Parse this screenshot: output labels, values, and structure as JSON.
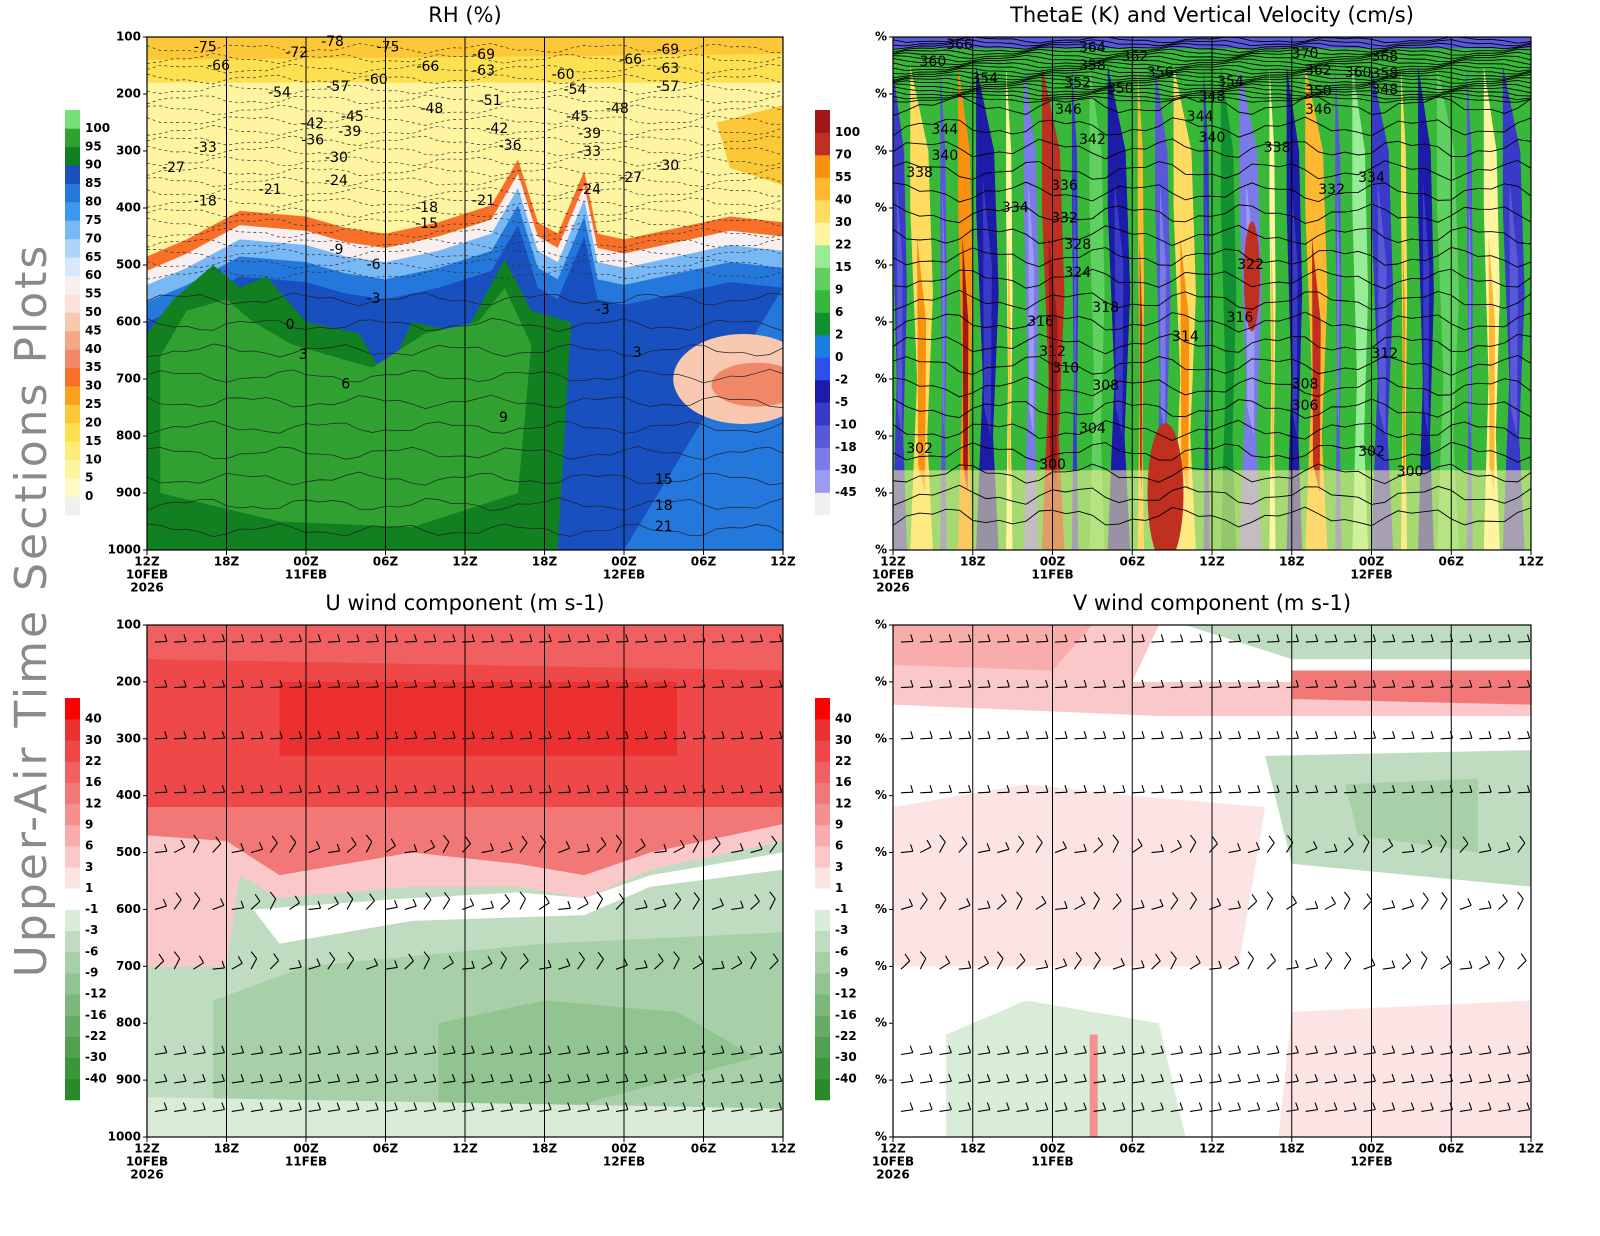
{
  "side_title": "Upper-Air Time Sections Plots",
  "chart_data": [
    {
      "type": "contour",
      "title": "RH (%)",
      "field": "rh",
      "xlim": [
        0,
        48
      ],
      "ylim": [
        1000,
        100
      ],
      "xticks": [
        {
          "value": 0,
          "label": "12Z"
        },
        {
          "value": 6,
          "label": "18Z"
        },
        {
          "value": 12,
          "label": "00Z"
        },
        {
          "value": 18,
          "label": "06Z"
        },
        {
          "value": 24,
          "label": "12Z"
        },
        {
          "value": 30,
          "label": "18Z"
        },
        {
          "value": 36,
          "label": "00Z"
        },
        {
          "value": 42,
          "label": "06Z"
        },
        {
          "value": 48,
          "label": "12Z"
        }
      ],
      "x_date_labels": [
        {
          "value": 0,
          "label": "10FEB"
        },
        {
          "value": 12,
          "label": "11FEB"
        },
        {
          "value": 36,
          "label": "12FEB"
        }
      ],
      "x_year_label": {
        "value": 0,
        "label": "2026"
      },
      "yticks": [
        100,
        200,
        300,
        400,
        500,
        600,
        700,
        800,
        900,
        1000
      ],
      "colorbar": {
        "levels": [
          0,
          5,
          10,
          15,
          20,
          25,
          30,
          35,
          40,
          45,
          50,
          55,
          60,
          65,
          70,
          75,
          80,
          85,
          90,
          95,
          100
        ],
        "colors": [
          "#f0f0f0",
          "#fffac8",
          "#fff5a0",
          "#ffeb78",
          "#fde050",
          "#fcc838",
          "#fca020",
          "#f87028",
          "#f08868",
          "#f4a888",
          "#f8c8b0",
          "#fce2d8",
          "#f8f0f0",
          "#d8e8fa",
          "#b0d4f8",
          "#78b8f4",
          "#3c98ec",
          "#2478dc",
          "#1850c0",
          "#108020",
          "#30a030",
          "#78e078"
        ]
      },
      "contour_labels": [
        {
          "x": 4.4,
          "y": 118,
          "value": -75
        },
        {
          "x": 14.0,
          "y": 109,
          "value": -78
        },
        {
          "x": 11.3,
          "y": 128,
          "value": -72
        },
        {
          "x": 18.2,
          "y": 118,
          "value": -75
        },
        {
          "x": 5.4,
          "y": 151,
          "value": -66
        },
        {
          "x": 25.4,
          "y": 132,
          "value": -69
        },
        {
          "x": 25.4,
          "y": 160,
          "value": -63
        },
        {
          "x": 21.2,
          "y": 153,
          "value": -66
        },
        {
          "x": 17.3,
          "y": 175,
          "value": -60
        },
        {
          "x": 14.4,
          "y": 188,
          "value": -57
        },
        {
          "x": 10.0,
          "y": 198,
          "value": -54
        },
        {
          "x": 31.4,
          "y": 167,
          "value": -60
        },
        {
          "x": 32.3,
          "y": 193,
          "value": -54
        },
        {
          "x": 36.5,
          "y": 140,
          "value": -66
        },
        {
          "x": 39.3,
          "y": 123,
          "value": -69
        },
        {
          "x": 39.3,
          "y": 156,
          "value": -63
        },
        {
          "x": 39.3,
          "y": 188,
          "value": -57
        },
        {
          "x": 21.5,
          "y": 226,
          "value": -48
        },
        {
          "x": 25.9,
          "y": 212,
          "value": -51
        },
        {
          "x": 35.5,
          "y": 226,
          "value": -48
        },
        {
          "x": 15.5,
          "y": 240,
          "value": -45
        },
        {
          "x": 15.3,
          "y": 267,
          "value": -39
        },
        {
          "x": 12.5,
          "y": 253,
          "value": -42
        },
        {
          "x": 12.5,
          "y": 282,
          "value": -36
        },
        {
          "x": 32.5,
          "y": 240,
          "value": -45
        },
        {
          "x": 33.4,
          "y": 270,
          "value": -39
        },
        {
          "x": 26.4,
          "y": 261,
          "value": -42
        },
        {
          "x": 27.4,
          "y": 291,
          "value": -36
        },
        {
          "x": 33.4,
          "y": 302,
          "value": -33
        },
        {
          "x": 14.3,
          "y": 312,
          "value": -30
        },
        {
          "x": 14.3,
          "y": 353,
          "value": -24
        },
        {
          "x": 4.4,
          "y": 295,
          "value": -33
        },
        {
          "x": 2.0,
          "y": 330,
          "value": -27
        },
        {
          "x": 9.3,
          "y": 368,
          "value": -21
        },
        {
          "x": 4.4,
          "y": 389,
          "value": -18
        },
        {
          "x": 36.5,
          "y": 347,
          "value": -27
        },
        {
          "x": 39.3,
          "y": 326,
          "value": -30
        },
        {
          "x": 33.4,
          "y": 368,
          "value": -24
        },
        {
          "x": 25.4,
          "y": 388,
          "value": -21
        },
        {
          "x": 21.1,
          "y": 400,
          "value": -18
        },
        {
          "x": 21.1,
          "y": 428,
          "value": -15
        },
        {
          "x": 14.3,
          "y": 474,
          "value": -9
        },
        {
          "x": 17.1,
          "y": 500,
          "value": -6
        },
        {
          "x": 17.1,
          "y": 560,
          "value": -3
        },
        {
          "x": 34.4,
          "y": 579,
          "value": -3
        },
        {
          "x": 10.8,
          "y": 605,
          "value": 0
        },
        {
          "x": 11.8,
          "y": 658,
          "value": 3
        },
        {
          "x": 15.0,
          "y": 710,
          "value": 6
        },
        {
          "x": 37.0,
          "y": 654,
          "value": 3
        },
        {
          "x": 26.9,
          "y": 768,
          "value": 9
        },
        {
          "x": 39.0,
          "y": 877,
          "value": 15
        },
        {
          "x": 39.0,
          "y": 923,
          "value": 18
        },
        {
          "x": 39.0,
          "y": 960,
          "value": 21
        }
      ]
    },
    {
      "type": "contour",
      "title": "ThetaE (K) and Vertical Velocity (cm/s)",
      "field": "thetae",
      "xlim": [
        0,
        48
      ],
      "ylim": [
        1000,
        100
      ],
      "xticks": [
        {
          "value": 0,
          "label": "12Z"
        },
        {
          "value": 6,
          "label": "18Z"
        },
        {
          "value": 12,
          "label": "00Z"
        },
        {
          "value": 18,
          "label": "06Z"
        },
        {
          "value": 24,
          "label": "12Z"
        },
        {
          "value": 30,
          "label": "18Z"
        },
        {
          "value": 36,
          "label": "00Z"
        },
        {
          "value": 42,
          "label": "06Z"
        },
        {
          "value": 48,
          "label": "12Z"
        }
      ],
      "x_date_labels": [
        {
          "value": 0,
          "label": "10FEB"
        },
        {
          "value": 12,
          "label": "11FEB"
        },
        {
          "value": 36,
          "label": "12FEB"
        }
      ],
      "x_year_label": {
        "value": 0,
        "label": "2026"
      },
      "yticks": [
        {
          "value": 100,
          "label": "%"
        },
        {
          "value": 200,
          "label": "%"
        },
        {
          "value": 300,
          "label": "%"
        },
        {
          "value": 400,
          "label": "%"
        },
        {
          "value": 500,
          "label": "%"
        },
        {
          "value": 600,
          "label": "%"
        },
        {
          "value": 700,
          "label": "%"
        },
        {
          "value": 800,
          "label": "%"
        },
        {
          "value": 900,
          "label": "%"
        },
        {
          "value": 1000,
          "label": "%"
        }
      ],
      "colorbar": {
        "levels": [
          -45,
          -30,
          -18,
          -10,
          -5,
          -2,
          0,
          2,
          6,
          9,
          15,
          22,
          30,
          40,
          55,
          70,
          100
        ],
        "colors": [
          "#f0f0f0",
          "#9c9cf4",
          "#7a7ae8",
          "#5858d8",
          "#3a3ac8",
          "#1c1ca8",
          "#2c50e8",
          "#1c7ce0",
          "#109030",
          "#38b838",
          "#60d060",
          "#98ec98",
          "#fff4a0",
          "#ffdc60",
          "#ffb830",
          "#f89010",
          "#c03020",
          "#a01818"
        ]
      },
      "contour_labels": [
        {
          "x": 5.0,
          "y": 114,
          "value": 366
        },
        {
          "x": 3.0,
          "y": 144,
          "value": 360
        },
        {
          "x": 6.9,
          "y": 174,
          "value": 354
        },
        {
          "x": 15.0,
          "y": 119,
          "value": 364
        },
        {
          "x": 15.0,
          "y": 151,
          "value": 358
        },
        {
          "x": 18.2,
          "y": 135,
          "value": 362
        },
        {
          "x": 13.9,
          "y": 182,
          "value": 352
        },
        {
          "x": 17.1,
          "y": 191,
          "value": 350
        },
        {
          "x": 20.1,
          "y": 163,
          "value": 356
        },
        {
          "x": 25.4,
          "y": 179,
          "value": 354
        },
        {
          "x": 24.0,
          "y": 205,
          "value": 348
        },
        {
          "x": 31.0,
          "y": 130,
          "value": 370
        },
        {
          "x": 32.0,
          "y": 160,
          "value": 362
        },
        {
          "x": 35.0,
          "y": 163,
          "value": 360
        },
        {
          "x": 37.0,
          "y": 135,
          "value": 368
        },
        {
          "x": 37.0,
          "y": 165,
          "value": 358
        },
        {
          "x": 37.0,
          "y": 193,
          "value": 348
        },
        {
          "x": 32.0,
          "y": 196,
          "value": 350
        },
        {
          "x": 32.0,
          "y": 228,
          "value": 346
        },
        {
          "x": 13.2,
          "y": 228,
          "value": 346
        },
        {
          "x": 3.9,
          "y": 263,
          "value": 344
        },
        {
          "x": 15.0,
          "y": 281,
          "value": 342
        },
        {
          "x": 23.1,
          "y": 240,
          "value": 344
        },
        {
          "x": 24.0,
          "y": 277,
          "value": 340
        },
        {
          "x": 28.9,
          "y": 295,
          "value": 338
        },
        {
          "x": 3.9,
          "y": 309,
          "value": 340
        },
        {
          "x": 2.0,
          "y": 339,
          "value": 338
        },
        {
          "x": 12.9,
          "y": 361,
          "value": 336
        },
        {
          "x": 9.2,
          "y": 400,
          "value": 334
        },
        {
          "x": 12.9,
          "y": 418,
          "value": 332
        },
        {
          "x": 33.0,
          "y": 368,
          "value": 332
        },
        {
          "x": 36.0,
          "y": 347,
          "value": 334
        },
        {
          "x": 13.9,
          "y": 465,
          "value": 328
        },
        {
          "x": 13.9,
          "y": 514,
          "value": 324
        },
        {
          "x": 26.9,
          "y": 500,
          "value": 322
        },
        {
          "x": 16.0,
          "y": 575,
          "value": 318
        },
        {
          "x": 11.1,
          "y": 600,
          "value": 316
        },
        {
          "x": 26.1,
          "y": 593,
          "value": 316
        },
        {
          "x": 22.0,
          "y": 626,
          "value": 314
        },
        {
          "x": 12.0,
          "y": 653,
          "value": 312
        },
        {
          "x": 13.0,
          "y": 682,
          "value": 310
        },
        {
          "x": 37.0,
          "y": 656,
          "value": 312
        },
        {
          "x": 16.0,
          "y": 712,
          "value": 308
        },
        {
          "x": 31.0,
          "y": 710,
          "value": 308
        },
        {
          "x": 31.0,
          "y": 747,
          "value": 306
        },
        {
          "x": 15.0,
          "y": 788,
          "value": 304
        },
        {
          "x": 2.0,
          "y": 823,
          "value": 302
        },
        {
          "x": 12.0,
          "y": 851,
          "value": 300
        },
        {
          "x": 36.0,
          "y": 828,
          "value": 302
        },
        {
          "x": 38.9,
          "y": 863,
          "value": 300
        }
      ]
    },
    {
      "type": "contour",
      "title": "U wind component (m s-1)",
      "field": "u",
      "xlim": [
        0,
        48
      ],
      "ylim": [
        1000,
        100
      ],
      "xticks": [
        {
          "value": 0,
          "label": "12Z"
        },
        {
          "value": 6,
          "label": "18Z"
        },
        {
          "value": 12,
          "label": "00Z"
        },
        {
          "value": 18,
          "label": "06Z"
        },
        {
          "value": 24,
          "label": "12Z"
        },
        {
          "value": 30,
          "label": "18Z"
        },
        {
          "value": 36,
          "label": "00Z"
        },
        {
          "value": 42,
          "label": "06Z"
        },
        {
          "value": 48,
          "label": "12Z"
        }
      ],
      "x_date_labels": [
        {
          "value": 0,
          "label": "10FEB"
        },
        {
          "value": 12,
          "label": "11FEB"
        },
        {
          "value": 36,
          "label": "12FEB"
        }
      ],
      "x_year_label": {
        "value": 0,
        "label": "2026"
      },
      "yticks": [
        100,
        200,
        300,
        400,
        500,
        600,
        700,
        800,
        900,
        1000
      ],
      "colorbar": {
        "levels": [
          -40,
          -30,
          -22,
          -16,
          -12,
          -9,
          -6,
          -3,
          -1,
          1,
          3,
          6,
          9,
          12,
          16,
          22,
          30,
          40
        ],
        "colors": [
          "#2a8a2a",
          "#3a963a",
          "#50a050",
          "#66ac66",
          "#7cb87c",
          "#92c492",
          "#a8d0a8",
          "#c0dcc0",
          "#d8ecd8",
          "#ffffff",
          "#fde4e4",
          "#fac8c8",
          "#f8acac",
          "#f59090",
          "#f27878",
          "#f06060",
          "#ee4848",
          "#ec3030",
          "#ff0000"
        ]
      },
      "contour_labels": []
    },
    {
      "type": "contour",
      "title": "V wind component (m s-1)",
      "field": "v",
      "xlim": [
        0,
        48
      ],
      "ylim": [
        1000,
        100
      ],
      "xticks": [
        {
          "value": 0,
          "label": "12Z"
        },
        {
          "value": 6,
          "label": "18Z"
        },
        {
          "value": 12,
          "label": "00Z"
        },
        {
          "value": 18,
          "label": "06Z"
        },
        {
          "value": 24,
          "label": "12Z"
        },
        {
          "value": 30,
          "label": "18Z"
        },
        {
          "value": 36,
          "label": "00Z"
        },
        {
          "value": 42,
          "label": "06Z"
        },
        {
          "value": 48,
          "label": "12Z"
        }
      ],
      "x_date_labels": [
        {
          "value": 0,
          "label": "10FEB"
        },
        {
          "value": 12,
          "label": "11FEB"
        },
        {
          "value": 36,
          "label": "12FEB"
        }
      ],
      "x_year_label": {
        "value": 0,
        "label": "2026"
      },
      "yticks": [
        {
          "value": 100,
          "label": "%"
        },
        {
          "value": 200,
          "label": "%"
        },
        {
          "value": 300,
          "label": "%"
        },
        {
          "value": 400,
          "label": "%"
        },
        {
          "value": 500,
          "label": "%"
        },
        {
          "value": 600,
          "label": "%"
        },
        {
          "value": 700,
          "label": "%"
        },
        {
          "value": 800,
          "label": "%"
        },
        {
          "value": 900,
          "label": "%"
        },
        {
          "value": 1000,
          "label": "%"
        }
      ],
      "colorbar": {
        "levels": [
          -40,
          -30,
          -22,
          -16,
          -12,
          -9,
          -6,
          -3,
          -1,
          1,
          3,
          6,
          9,
          12,
          16,
          22,
          30,
          40
        ],
        "colors": [
          "#2a8a2a",
          "#3a963a",
          "#50a050",
          "#66ac66",
          "#7cb87c",
          "#92c492",
          "#a8d0a8",
          "#c0dcc0",
          "#d8ecd8",
          "#ffffff",
          "#fde4e4",
          "#fac8c8",
          "#f8acac",
          "#f59090",
          "#f27878",
          "#f06060",
          "#ee4848",
          "#ec3030",
          "#ff0000"
        ]
      },
      "contour_labels": []
    }
  ]
}
